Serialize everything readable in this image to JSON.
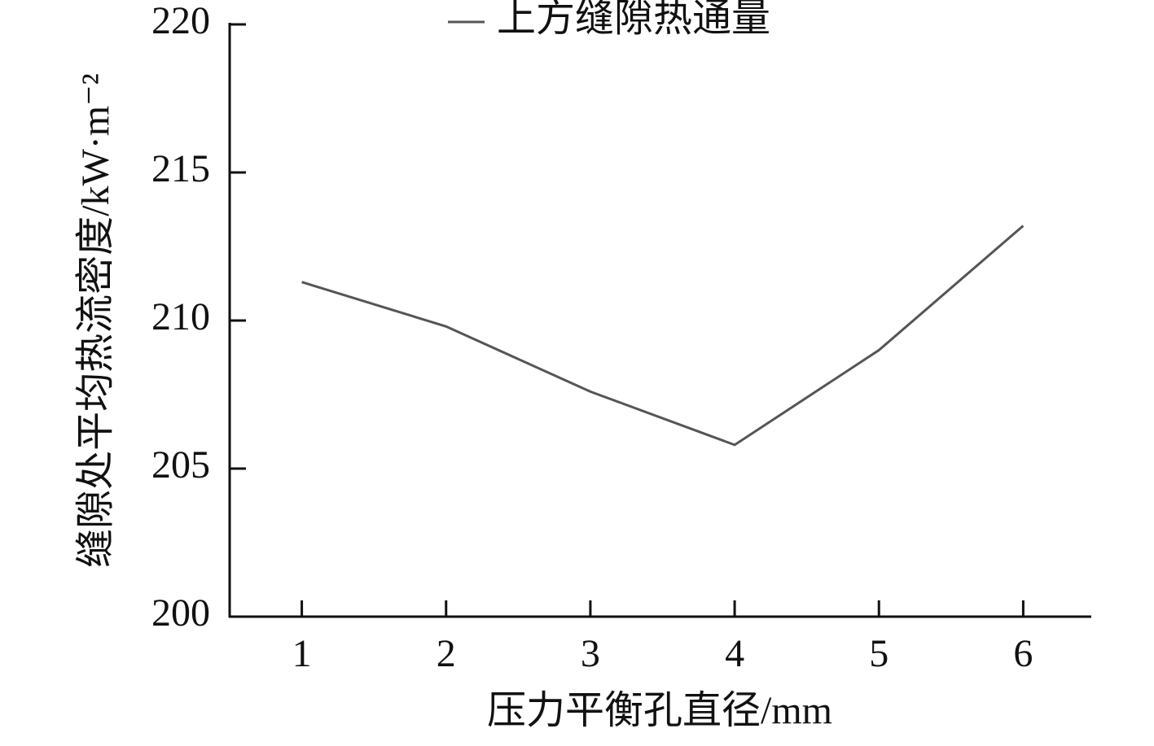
{
  "chart_data": {
    "type": "line",
    "xlabel": "压力平衡孔直径/mm",
    "ylabel": "缝隙处平均热流密度/kW·m⁻²",
    "x": [
      1,
      2,
      3,
      4,
      5,
      6
    ],
    "xlim": [
      0.5,
      6.5
    ],
    "xticks": [
      1,
      2,
      3,
      4,
      5,
      6
    ],
    "ylim": [
      200,
      220
    ],
    "yticks": [
      200,
      205,
      210,
      215,
      220
    ],
    "legend": "top",
    "series": [
      {
        "name": "上方缝隙热通量",
        "color": "#555555",
        "values": [
          211.3,
          209.8,
          207.6,
          205.8,
          209.0,
          213.2
        ]
      }
    ]
  }
}
